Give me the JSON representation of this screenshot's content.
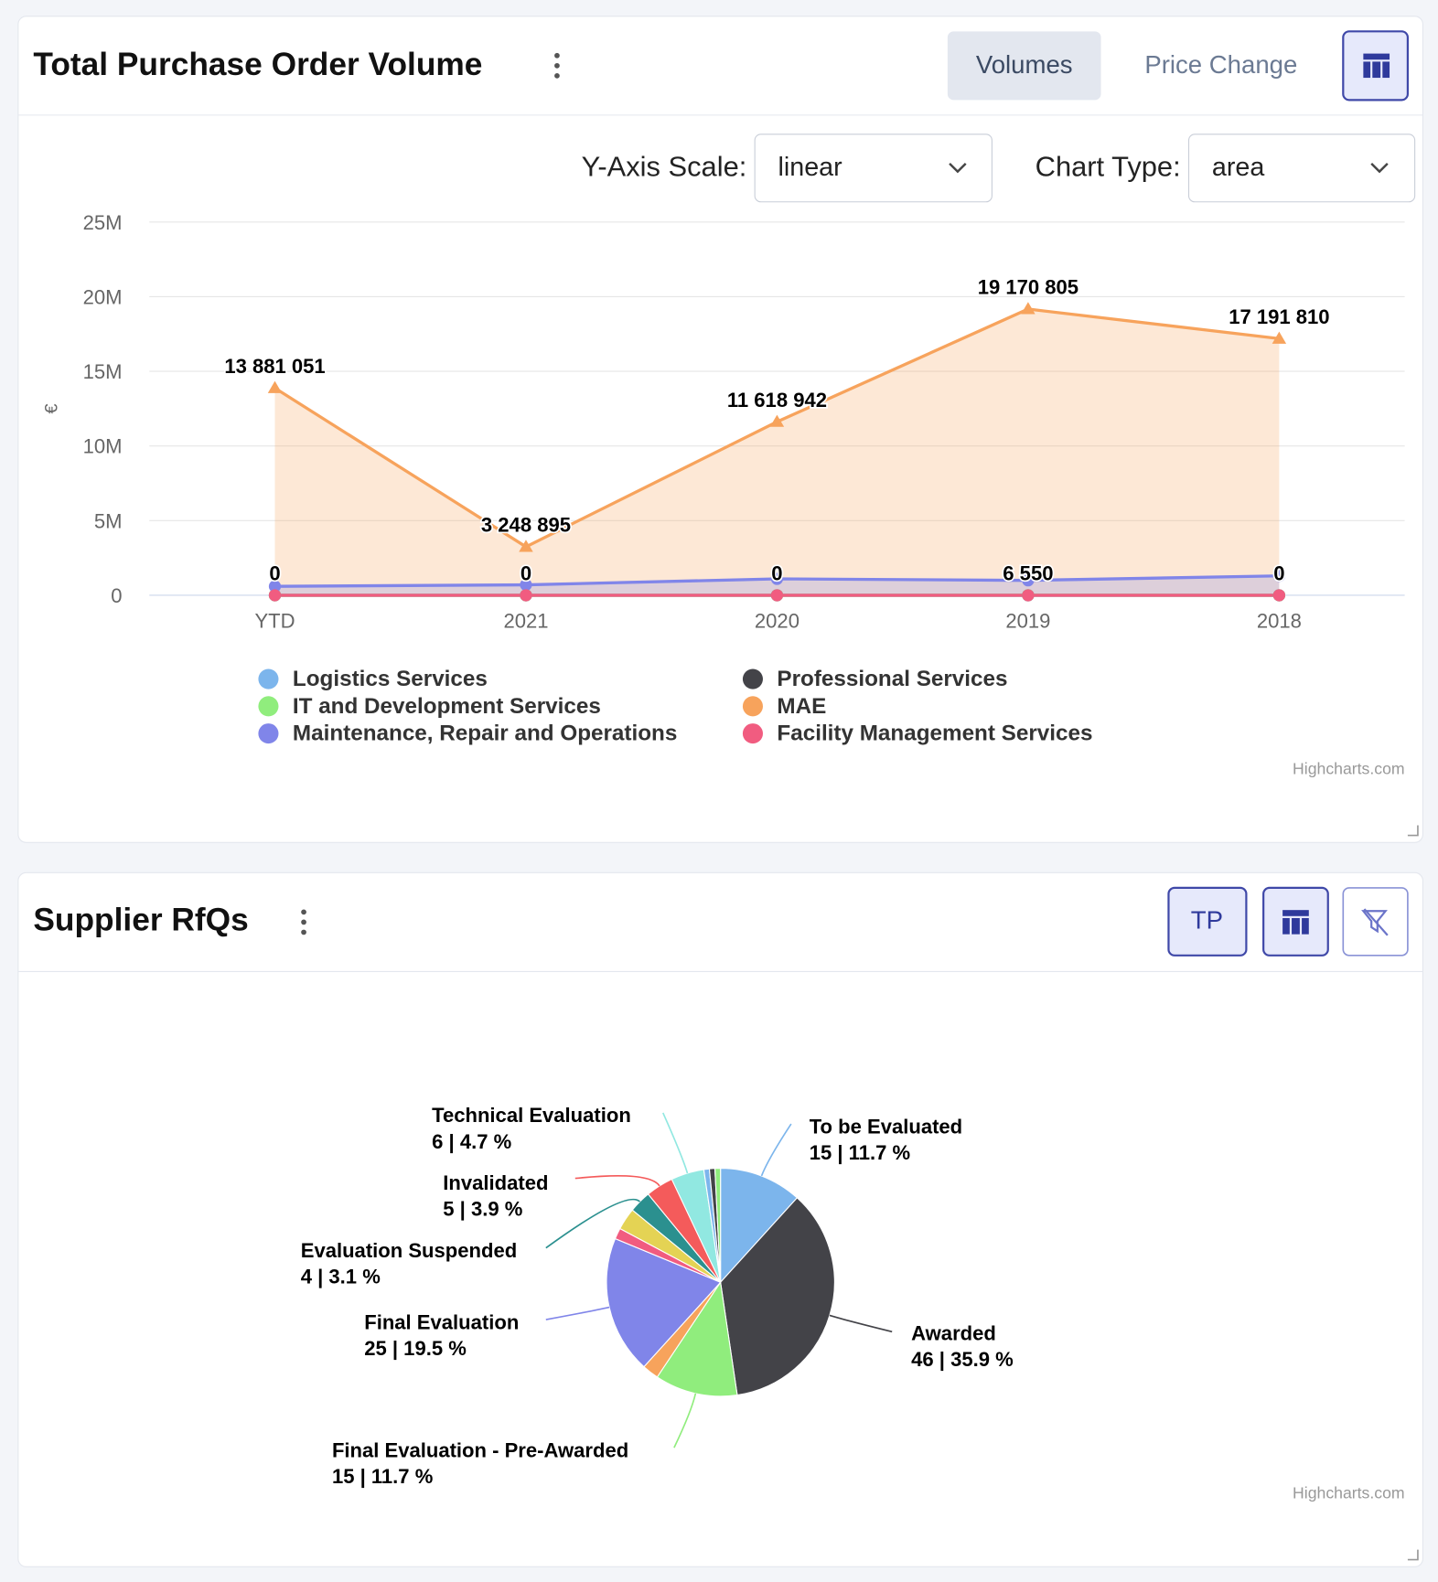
{
  "panels": [
    {
      "title": "Total Purchase Order Volume",
      "tabs": [
        "Volumes",
        "Price Change"
      ],
      "controls": [
        {
          "label": "Y-Axis Scale:",
          "value": "linear"
        },
        {
          "label": "Chart Type:",
          "value": "area"
        }
      ]
    },
    {
      "title": "Supplier RfQs",
      "buttons": [
        "TP"
      ]
    }
  ],
  "chart_data": [
    {
      "type": "area",
      "y_label": "€",
      "log_scale": false,
      "grid": true,
      "credits": "Highcharts.com",
      "categories": [
        "YTD",
        "2021",
        "2020",
        "2019",
        "2018"
      ],
      "ylim": [
        0,
        25000000
      ],
      "yticks": [
        0,
        {
          "value": 5000000,
          "label": "5M"
        },
        {
          "value": 10000000,
          "label": "10M"
        },
        {
          "value": 15000000,
          "label": "15M"
        },
        {
          "value": 20000000,
          "label": "20M"
        },
        {
          "value": 25000000,
          "label": "25M"
        }
      ],
      "series": [
        {
          "name": "Logistics Services",
          "color": "#7cb5ec",
          "values": [
            0,
            0,
            0,
            0,
            0
          ]
        },
        {
          "name": "Professional Services",
          "color": "#434348",
          "values": [
            0,
            0,
            0,
            0,
            0
          ]
        },
        {
          "name": "IT and Development Services",
          "color": "#90ed7d",
          "values": [
            0,
            0,
            0,
            6550,
            0
          ],
          "value_labels": [
            "0",
            "0",
            "0",
            "6 550",
            "0"
          ]
        },
        {
          "name": "MAE",
          "color": "#f7a35c",
          "values": [
            13881051,
            3248895,
            11618942,
            19170805,
            17191810
          ],
          "value_labels": [
            "13 881 051",
            "3 248 895",
            "11 618 942",
            "19 170 805",
            "17 191 810"
          ]
        },
        {
          "name": "Maintenance, Repair and Operations",
          "color": "#8085e9",
          "values": [
            600000,
            700000,
            1100000,
            1000000,
            1300000
          ]
        },
        {
          "name": "Facility Management Services",
          "color": "#f15c80",
          "values": [
            0,
            0,
            0,
            0,
            0
          ]
        }
      ]
    },
    {
      "type": "pie",
      "credits": "Highcharts.com",
      "categories": [
        "To be Evaluated",
        "Awarded",
        "Final Evaluation - Pre-Awarded",
        null,
        "Final Evaluation",
        null,
        null,
        "Evaluation Suspended",
        "Invalidated",
        "Technical Evaluation",
        null,
        null,
        null
      ],
      "values": [
        15,
        46,
        15,
        3,
        25,
        2,
        4,
        4,
        5,
        6,
        1,
        1,
        1
      ],
      "value_labels": [
        "15 | 11.7 %",
        "46 | 35.9 %",
        "15 | 11.7 %",
        null,
        "25 | 19.5 %",
        null,
        null,
        "4 | 3.1 %",
        "5 | 3.9 %",
        "6 | 4.7 %",
        null,
        null,
        null
      ],
      "colors": [
        "#7cb5ec",
        "#434348",
        "#90ed7d",
        "#f7a35c",
        "#8085e9",
        "#f15c80",
        "#e4d354",
        "#2b908f",
        "#f45b5b",
        "#91e8e1",
        "#7cb5ec",
        "#434348",
        "#90ed7d"
      ]
    }
  ]
}
